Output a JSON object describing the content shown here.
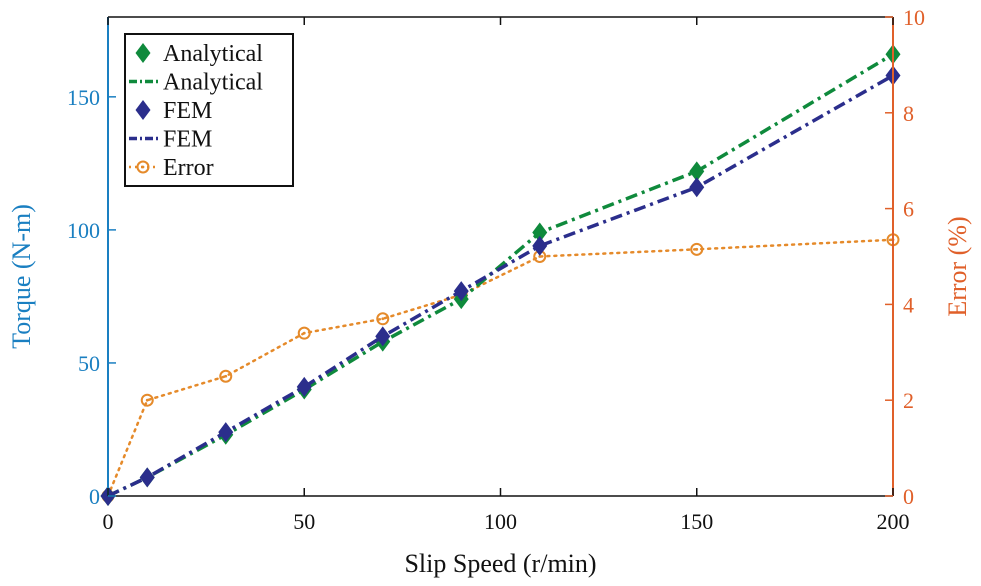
{
  "chart_data": {
    "type": "line",
    "xlabel": "Slip Speed (r/min)",
    "ylabel_left": "Torque (N-m)",
    "ylabel_right": "Error (%)",
    "xlim": [
      0,
      200
    ],
    "ylim_left": [
      0,
      180
    ],
    "ylim_right": [
      0,
      10
    ],
    "x_ticks": [
      0,
      50,
      100,
      150,
      200
    ],
    "y_left_ticks": [
      0,
      50,
      100,
      150
    ],
    "y_right_ticks": [
      0,
      2,
      4,
      6,
      8,
      10
    ],
    "grid": false,
    "legend_position": "top-left",
    "colors": {
      "left_axis": "#1a7fc1",
      "right_axis": "#e0602a",
      "analytical": "#0f8a3c",
      "fem": "#2b2e8c",
      "error": "#e58a2a"
    },
    "series": [
      {
        "name": "Analytical",
        "axis": "left",
        "markers_legend": "Analytical",
        "line_legend": "Analytical",
        "x": [
          0,
          10,
          30,
          50,
          70,
          90,
          110,
          150,
          200
        ],
        "values": [
          0,
          7,
          23,
          40,
          58,
          74,
          99,
          122,
          166
        ]
      },
      {
        "name": "FEM",
        "axis": "left",
        "markers_legend": "FEM",
        "line_legend": "FEM",
        "x": [
          0,
          10,
          30,
          50,
          70,
          90,
          110,
          150,
          200
        ],
        "values": [
          0,
          7,
          24,
          41,
          60,
          77,
          94,
          116,
          158
        ]
      },
      {
        "name": "Error",
        "axis": "right",
        "x": [
          0,
          10,
          30,
          50,
          70,
          90,
          110,
          150,
          200
        ],
        "values": [
          0,
          2.0,
          2.5,
          3.4,
          3.7,
          4.2,
          5.0,
          5.15,
          5.35
        ]
      }
    ],
    "legend": [
      "Analytical",
      "Analytical",
      "FEM",
      "FEM",
      "Error"
    ]
  }
}
